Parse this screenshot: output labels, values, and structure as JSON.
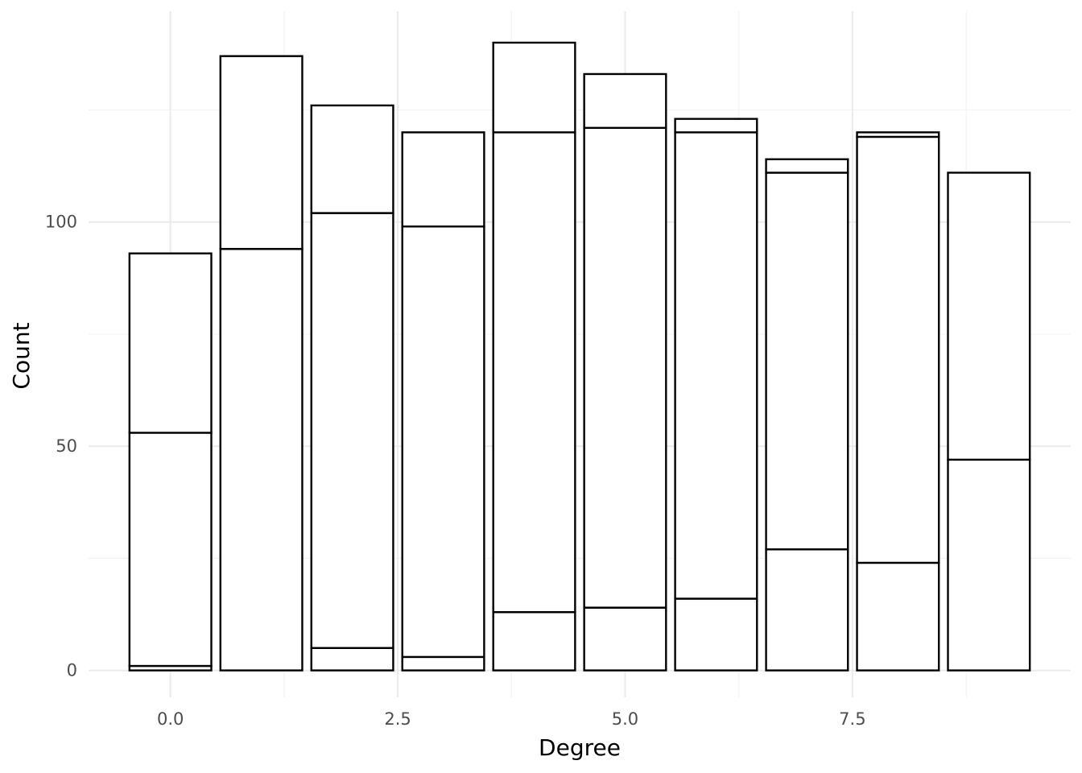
{
  "chart_data": {
    "type": "bar",
    "stacked": true,
    "xlabel": "Degree",
    "ylabel": "Count",
    "x": [
      0,
      1,
      2,
      3,
      4,
      5,
      6,
      7,
      8,
      9
    ],
    "stack_boundaries": [
      [
        0,
        1,
        53,
        93
      ],
      [
        0,
        94,
        137
      ],
      [
        0,
        5,
        102,
        126
      ],
      [
        0,
        3,
        99,
        120
      ],
      [
        0,
        13,
        120,
        140
      ],
      [
        0,
        14,
        121,
        133
      ],
      [
        0,
        16,
        120,
        123
      ],
      [
        0,
        27,
        111,
        114
      ],
      [
        0,
        24,
        119,
        120
      ],
      [
        0,
        47,
        111
      ]
    ],
    "xlim": [
      -0.9,
      9.9
    ],
    "ylim": [
      -6,
      147
    ],
    "x_ticks": [
      0,
      2.5,
      5,
      7.5
    ],
    "x_tick_labels": [
      "0.0",
      "2.5",
      "5.0",
      "7.5"
    ],
    "y_ticks": [
      0,
      50,
      100
    ],
    "y_tick_labels": [
      "0",
      "50",
      "100"
    ],
    "x_minor_ticks": [
      1.25,
      3.75,
      6.25,
      8.75
    ],
    "y_minor_ticks": [
      25,
      75,
      125
    ],
    "bar_fill": "#ffffff",
    "bar_outline": "#000000",
    "grid": true,
    "legend": "none"
  }
}
